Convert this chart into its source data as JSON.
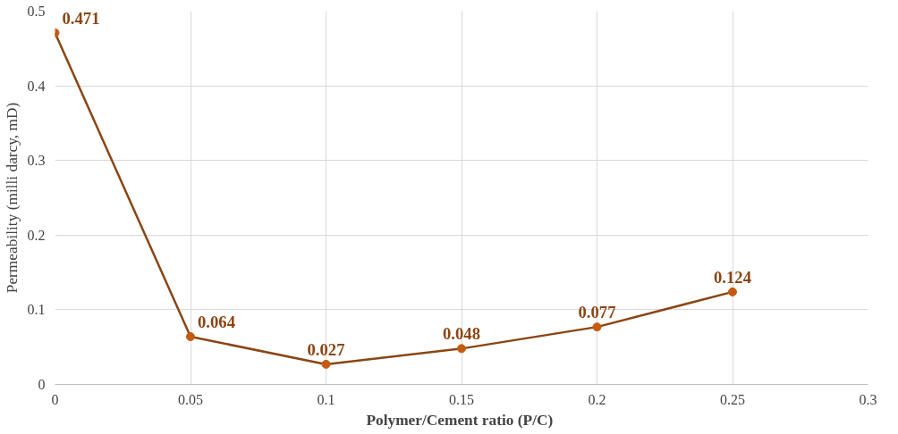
{
  "chart_data": {
    "type": "line",
    "xlabel": "Polymer/Cement ratio  (P/C)",
    "ylabel": "Permeability (milli darcy, mD)",
    "x": [
      0,
      0.05,
      0.1,
      0.15,
      0.2,
      0.25
    ],
    "series": [
      {
        "color": "#8b4513",
        "values": [
          0.471,
          0.064,
          0.027,
          0.048,
          0.077,
          0.124
        ]
      }
    ],
    "xlim": [
      0,
      0.3
    ],
    "xticks": [
      0,
      0.05,
      0.1,
      0.15,
      0.2,
      0.25,
      0.3
    ],
    "ylim": [
      0,
      0.5
    ],
    "yticks": [
      0,
      0.1,
      0.2,
      0.3,
      0.4,
      0.5
    ],
    "grid": true,
    "marker": "circle",
    "data_labels": true
  }
}
